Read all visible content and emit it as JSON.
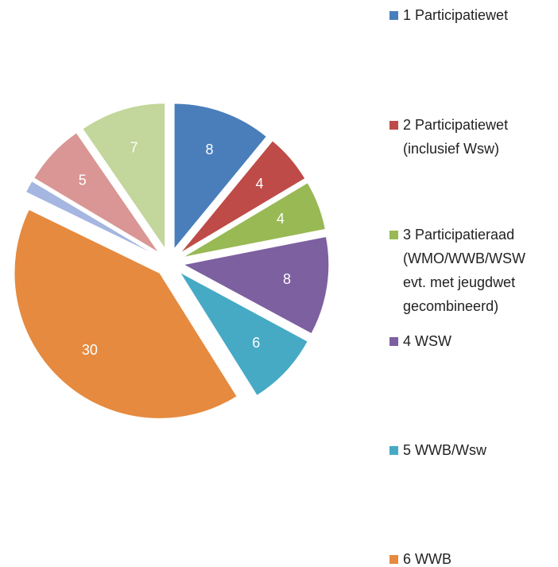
{
  "chart_data": {
    "type": "pie",
    "categories": [
      "1 Participatiewet",
      "2 Participatiewet\n(inclusief Wsw)",
      "3 Participatieraad\n(WMO/WWB/WSW\n evt. met jeugdwet\ngecombineerd)",
      "4 WSW",
      "5 WWB/Wsw",
      "6 WWB",
      null,
      null,
      null
    ],
    "values": [
      8,
      4,
      4,
      8,
      6,
      30,
      1,
      5,
      7
    ],
    "value_labels": [
      "8",
      "4",
      "4",
      "8",
      "6",
      "30",
      null,
      "5",
      "7"
    ],
    "colors": [
      "#4a7ebb",
      "#be4b48",
      "#98b954",
      "#7d60a0",
      "#46aac5",
      "#e58a3f",
      "#a5b6e0",
      "#d99694",
      "#c3d69b"
    ]
  }
}
